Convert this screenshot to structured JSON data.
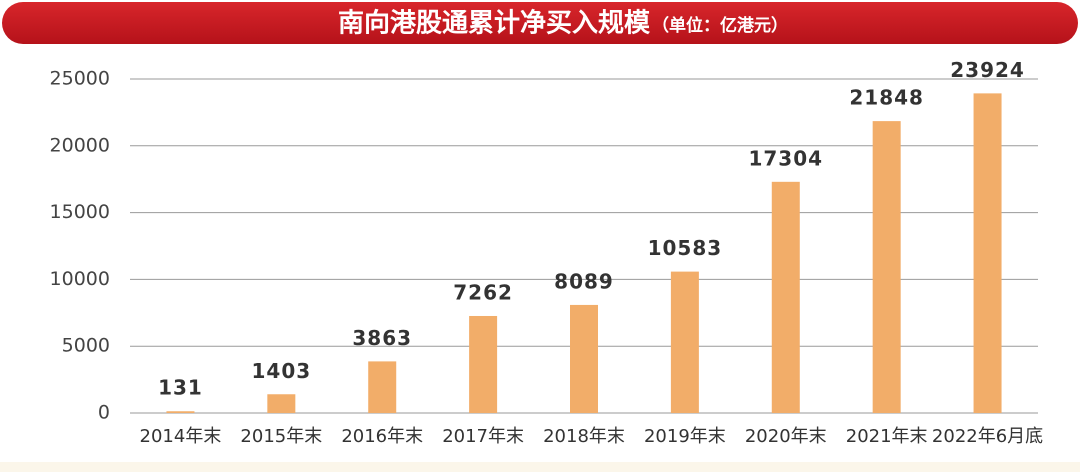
{
  "chart_data": {
    "type": "bar",
    "title": "南向港股通累计净买入规模",
    "subtitle": "（单位：亿港元）",
    "categories": [
      "2014年末",
      "2015年末",
      "2016年末",
      "2017年末",
      "2018年末",
      "2019年末",
      "2020年末",
      "2021年末",
      "2022年6月底"
    ],
    "values": [
      131,
      1403,
      3863,
      7262,
      8089,
      10583,
      17304,
      21848,
      23924
    ],
    "color": "#f2ad69",
    "ylim": [
      0,
      25000
    ],
    "yticks": [
      0,
      5000,
      10000,
      15000,
      20000,
      25000
    ],
    "grid": true
  }
}
